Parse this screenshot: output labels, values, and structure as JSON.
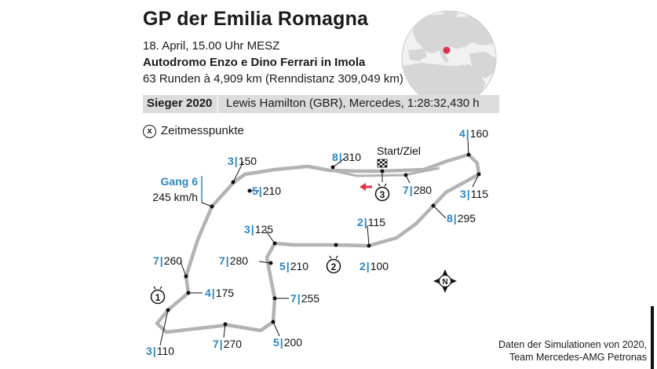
{
  "header": {
    "title": "GP der Emilia Romagna",
    "date": "18. April, 15.00 Uhr MESZ",
    "circuit": "Autodromo Enzo e Dino Ferrari in Imola",
    "distance": "63 Runden à 4,909 km (Renndistanz 309,049 km)"
  },
  "winner": {
    "label": "Sieger 2020",
    "value": "Lewis Hamilton (GBR), Mercedes, 1:28:32,430 h"
  },
  "legend": {
    "marker": "x",
    "label": "Zeitmesspunkte"
  },
  "colors": {
    "gear_blue": "#2e86c1",
    "track_grey": "#b3b3b3",
    "direction_arrow": "#e0304e",
    "locator_dot": "#e0304e",
    "globe_land": "#d6d6d6",
    "globe_ocean": "#f1f1f1"
  },
  "map": {
    "start_finish": "Start/Ziel",
    "gang_label": "Gang 6",
    "speed_label": "245 km/h",
    "timing_points": [
      "1",
      "2",
      "3"
    ],
    "compass_letter": "N",
    "icons": [
      "globe-locator-icon",
      "checkered-flag-icon",
      "direction-arrow-icon",
      "compass-icon",
      "stopwatch-icon"
    ],
    "points": [
      {
        "gear": "3",
        "speed": "150"
      },
      {
        "gear": "5",
        "speed": "210"
      },
      {
        "gear": "8",
        "speed": "310"
      },
      {
        "gear": "7",
        "speed": "280"
      },
      {
        "gear": "4",
        "speed": "160"
      },
      {
        "gear": "3",
        "speed": "115"
      },
      {
        "gear": "8",
        "speed": "295"
      },
      {
        "gear": "2",
        "speed": "115"
      },
      {
        "gear": "3",
        "speed": "125"
      },
      {
        "gear": "7",
        "speed": "280"
      },
      {
        "gear": "5",
        "speed": "210"
      },
      {
        "gear": "2",
        "speed": "100"
      },
      {
        "gear": "7",
        "speed": "260"
      },
      {
        "gear": "4",
        "speed": "175"
      },
      {
        "gear": "7",
        "speed": "255"
      },
      {
        "gear": "3",
        "speed": "110"
      },
      {
        "gear": "7",
        "speed": "270"
      },
      {
        "gear": "5",
        "speed": "200"
      }
    ]
  },
  "source": {
    "line1": "Daten der Simulationen von 2020,",
    "line2": "Team Mercedes-AMG Petronas"
  }
}
